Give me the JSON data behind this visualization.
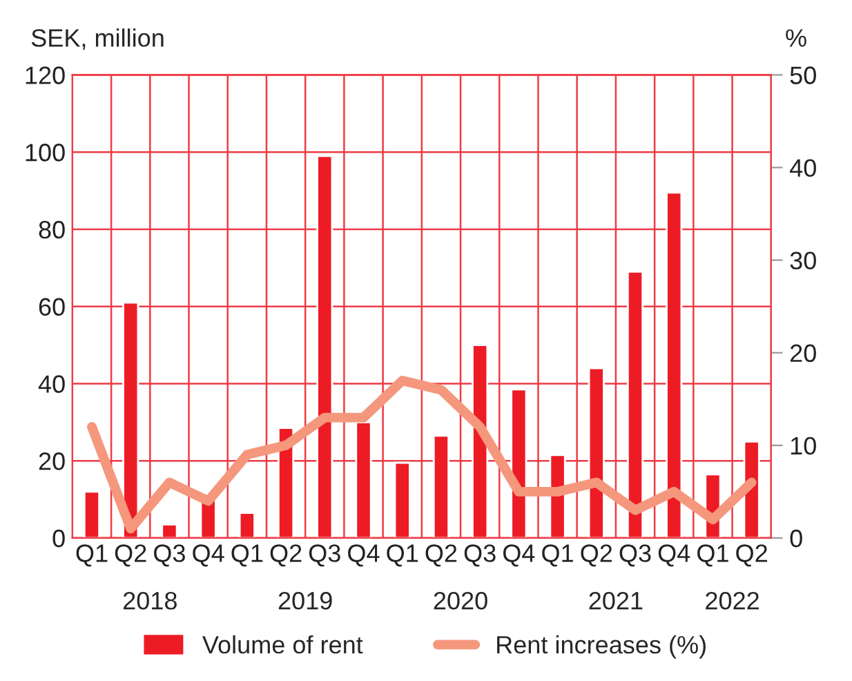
{
  "chart_data": {
    "type": "bar",
    "ylabel": "SEK, million",
    "y2label": "%",
    "categories": [
      "Q1",
      "Q2",
      "Q3",
      "Q4",
      "Q1",
      "Q2",
      "Q3",
      "Q4",
      "Q1",
      "Q2",
      "Q3",
      "Q4",
      "Q1",
      "Q2",
      "Q3",
      "Q4",
      "Q1",
      "Q2"
    ],
    "series": [
      {
        "name": "Volume of rent",
        "color": "#ed1c24",
        "values": [
          12,
          61,
          3.5,
          10,
          6.5,
          28.5,
          99,
          30,
          19.5,
          26.5,
          50,
          38.5,
          21.5,
          44,
          69,
          89.5,
          16.5,
          25
        ]
      },
      {
        "name": "Rent increases (%)",
        "type": "line",
        "axis": "y2",
        "color": "#f4977c",
        "values": [
          12,
          1,
          6,
          4,
          9,
          10,
          13,
          13,
          17,
          16,
          12,
          5,
          5,
          6,
          3,
          5,
          2,
          6
        ]
      }
    ],
    "annotations": [
      "2018",
      "2019",
      "2020",
      "2021",
      "2022"
    ],
    "ylim": [
      0,
      120
    ],
    "yticks": [
      0,
      20,
      40,
      60,
      80,
      100,
      120
    ],
    "y2lim": [
      0,
      50
    ],
    "y2ticks": [
      0,
      10,
      20,
      30,
      40,
      50
    ],
    "grid": true,
    "legend": "bottom",
    "line_style": "solid",
    "marker": "none"
  }
}
